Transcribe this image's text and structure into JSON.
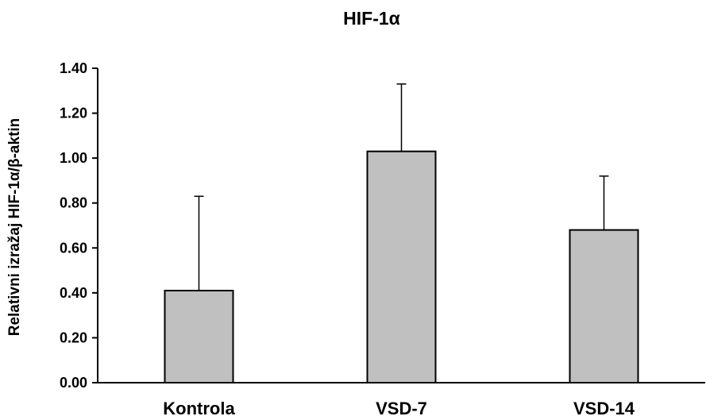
{
  "chart_data": {
    "type": "bar",
    "title": "HIF-1α",
    "xlabel": "",
    "ylabel": "Relativni izražaj HIF-1α/β-aktin",
    "categories": [
      "Kontrola",
      "VSD-7",
      "VSD-14"
    ],
    "values": [
      0.41,
      1.03,
      0.68
    ],
    "error_plus": [
      0.42,
      0.3,
      0.24
    ],
    "ylim": [
      0,
      1.4
    ],
    "yticks": [
      "0.00",
      "0.20",
      "0.40",
      "0.60",
      "0.80",
      "1.00",
      "1.20",
      "1.40"
    ],
    "grid": false,
    "legend": "none",
    "colors": {
      "bar_fill": "#c0c0c0",
      "bar_stroke": "#000000",
      "axis": "#000000",
      "text": "#000000"
    }
  }
}
